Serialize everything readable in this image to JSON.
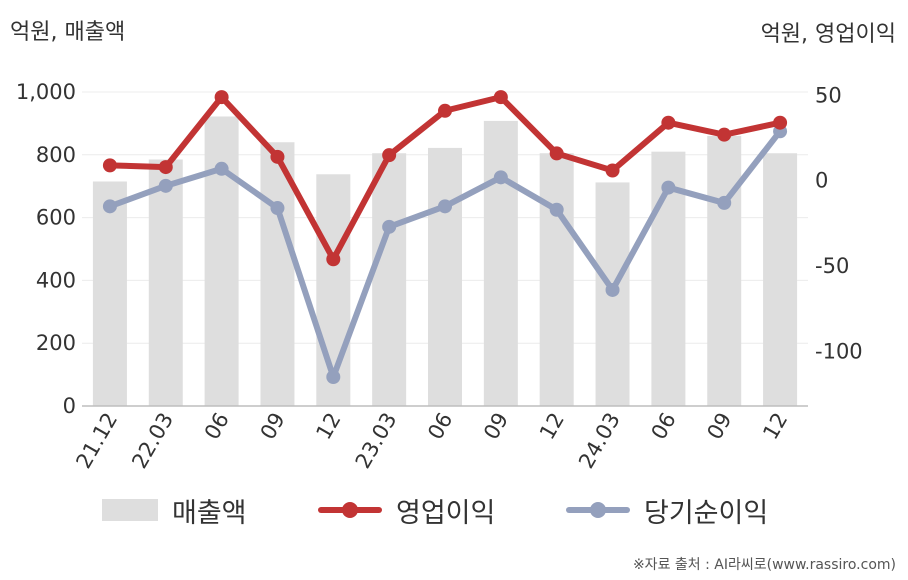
{
  "units": {
    "left": "억원, 매출액",
    "right": "억원, 영업이익"
  },
  "source": "※자료 출처 : AI라씨로(www.rassiro.com)",
  "colors": {
    "bar": "#dedede",
    "operating": "#c23434",
    "net": "#94a0bd"
  },
  "legend": [
    {
      "name": "매출액",
      "kind": "bar",
      "color": "#dedede"
    },
    {
      "name": "영업이익",
      "kind": "line",
      "color": "#c23434"
    },
    {
      "name": "당기순이익",
      "kind": "line",
      "color": "#94a0bd"
    }
  ],
  "chart_data": {
    "type": "bar",
    "categories": [
      "21.12",
      "22.03",
      "06",
      "09",
      "12",
      "23.03",
      "06",
      "09",
      "12",
      "24.03",
      "06",
      "09",
      "12"
    ],
    "left_axis": {
      "range": [
        0,
        1000
      ],
      "ticks": [
        0,
        200,
        400,
        600,
        800,
        1000
      ],
      "tick_labels": [
        "0",
        "200",
        "400",
        "600",
        "800",
        "1,000"
      ]
    },
    "right_axis": {
      "range": [
        -132,
        52
      ],
      "ticks": [
        -100,
        -50,
        0,
        50
      ],
      "tick_labels": [
        "-100",
        "-50",
        "0",
        "50"
      ]
    },
    "grid": true,
    "legend_position": "bottom",
    "series": [
      {
        "name": "매출액",
        "type": "bar",
        "axis": "left",
        "values": [
          715,
          785,
          922,
          840,
          738,
          805,
          822,
          908,
          805,
          712,
          810,
          860,
          805
        ]
      },
      {
        "name": "영업이익",
        "type": "line",
        "axis": "right",
        "values": [
          9,
          8,
          49,
          14,
          -46,
          15,
          41,
          49,
          16,
          6,
          34,
          27,
          34
        ]
      },
      {
        "name": "당기순이익",
        "type": "line",
        "axis": "right",
        "values": [
          -15,
          -3,
          7,
          -16,
          -115,
          -27,
          -15,
          2,
          -17,
          -64,
          -4,
          -13,
          29
        ]
      }
    ]
  }
}
